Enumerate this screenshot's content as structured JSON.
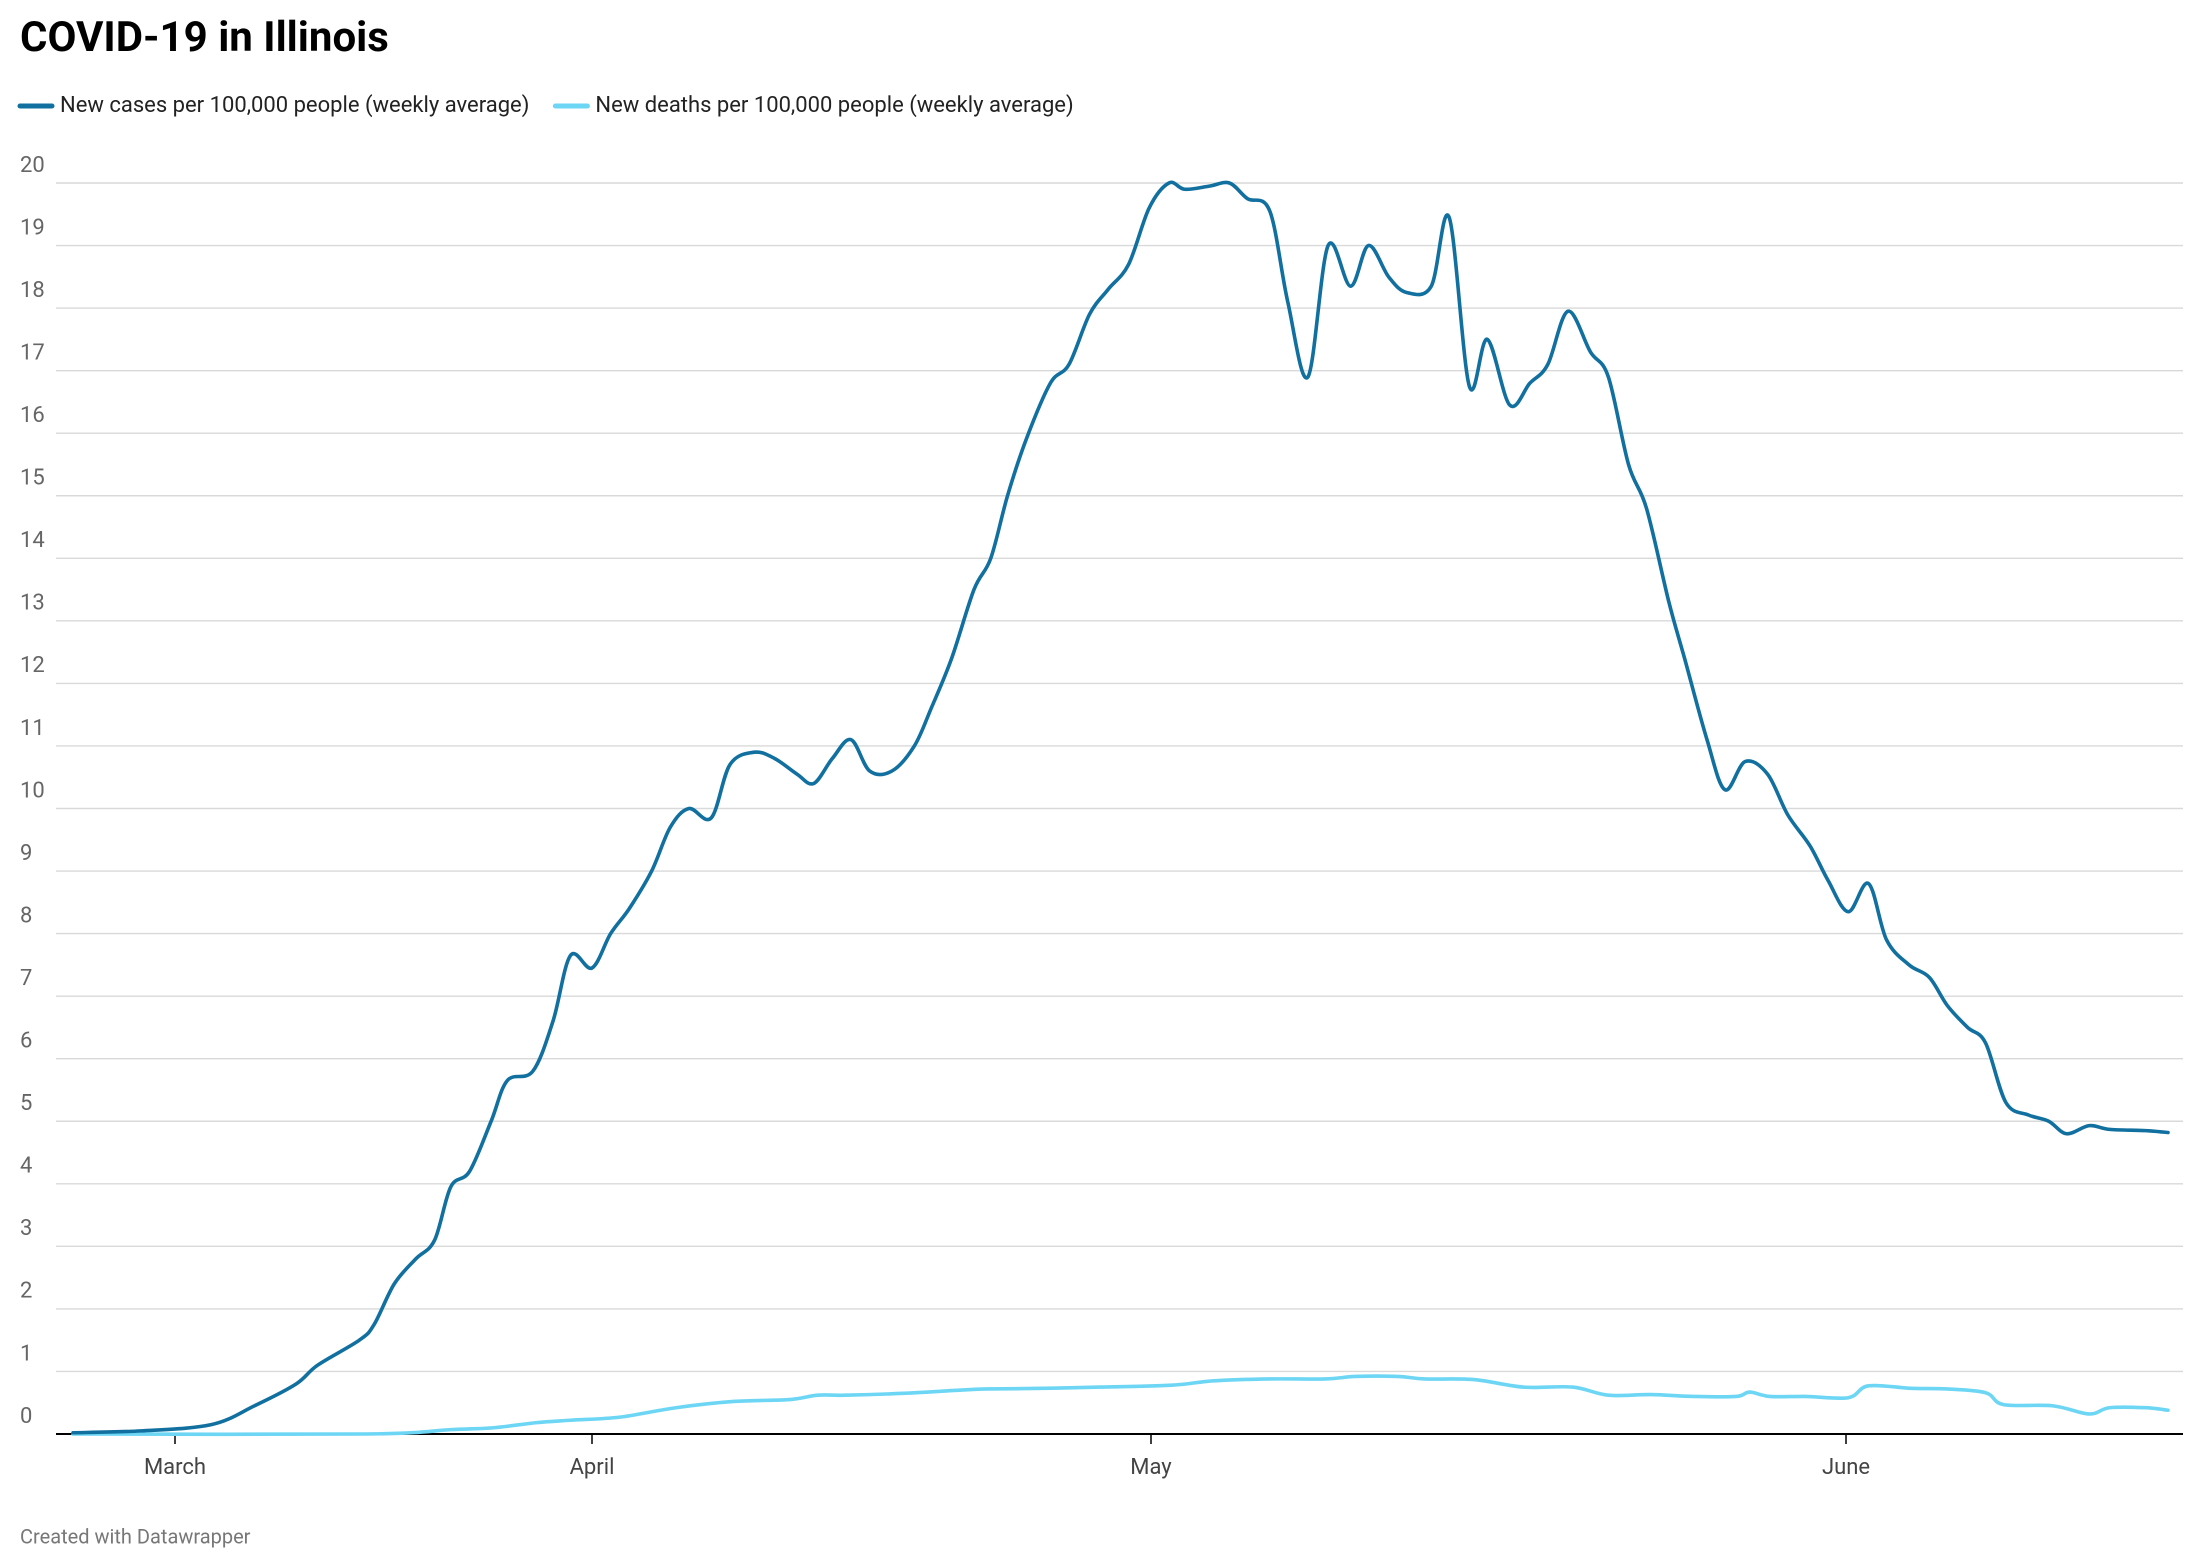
{
  "chart_data": {
    "type": "line",
    "title": "COVID-19 in Illinois",
    "footer": "Created with Datawrapper",
    "xlim": [
      -7.5,
      106.3
    ],
    "xticks": [
      {
        "value": 0,
        "label": "March"
      },
      {
        "value": 31,
        "label": "April"
      },
      {
        "value": 61,
        "label": "May"
      },
      {
        "value": 92,
        "label": "June"
      }
    ],
    "ylim": [
      0,
      20
    ],
    "yticks": [
      0,
      1,
      2,
      3,
      4,
      5,
      6,
      7,
      8,
      9,
      10,
      11,
      12,
      13,
      14,
      15,
      16,
      17,
      18,
      19,
      20
    ],
    "grid": true,
    "legend": "top",
    "series": [
      {
        "name": "New cases per 100,000 people (weekly average)",
        "color": "#11709f",
        "x": [
          -7.5,
          -2.5,
          2.7,
          5.9,
          9.0,
          10.6,
          13.7,
          14.8,
          16.3,
          17.9,
          19.3,
          20.5,
          21.9,
          23.5,
          24.7,
          26.6,
          28.1,
          29.4,
          31,
          32.0,
          33.0,
          34.2,
          35.2,
          36.2,
          37.4,
          38.4,
          39.7,
          40.8,
          42.0,
          42.9,
          43.9,
          44.9,
          45.9,
          47.1,
          48.3,
          49.2,
          50.3,
          51.5,
          52.4,
          53.3,
          54.3,
          55.6,
          56.6,
          57.7,
          58.7,
          59.8,
          60.9,
          61.8,
          62.5,
          63.6,
          64.5,
          65.3,
          66.3,
          67.1,
          68.0,
          68.9,
          69.9,
          70.7,
          71.6,
          72.4,
          73.5,
          74.3,
          75.2,
          76.0,
          77.0,
          77.9,
          78.7,
          79.6,
          80.6,
          81.4,
          82.3,
          83.1,
          84.1,
          84.8,
          85.8,
          86.6,
          87.5,
          88.5,
          89.4,
          90.4,
          91.2,
          92.1,
          93.0,
          93.8,
          94.8,
          95.7,
          96.5,
          97.4,
          98.2,
          99.1,
          100.1,
          101.0,
          101.8,
          102.8,
          103.7,
          105.3,
          106.3
        ],
        "values": [
          0.02,
          0.05,
          0.15,
          0.45,
          0.8,
          1.1,
          1.5,
          1.75,
          2.4,
          2.8,
          3.1,
          3.95,
          4.2,
          5.0,
          5.65,
          5.8,
          6.6,
          7.65,
          7.45,
          8.0,
          8.4,
          9.0,
          9.7,
          10.0,
          9.85,
          10.7,
          10.9,
          10.8,
          10.55,
          10.4,
          10.8,
          11.1,
          10.6,
          10.6,
          11.0,
          11.6,
          12.4,
          13.5,
          14.0,
          15.0,
          15.9,
          16.8,
          17.1,
          17.9,
          18.3,
          18.7,
          19.6,
          20.0,
          19.9,
          19.95,
          20.0,
          19.75,
          19.55,
          18.1,
          16.9,
          19.0,
          18.35,
          19.0,
          18.5,
          18.25,
          18.35,
          19.45,
          16.75,
          17.5,
          16.45,
          16.8,
          17.1,
          17.95,
          17.3,
          16.9,
          15.5,
          14.8,
          13.3,
          12.4,
          11.1,
          10.3,
          10.75,
          10.55,
          9.9,
          9.4,
          8.85,
          8.35,
          8.8,
          7.9,
          7.5,
          7.3,
          6.85,
          6.5,
          6.25,
          5.3,
          5.1,
          5.0,
          4.8,
          4.93,
          4.87,
          4.85,
          4.82
        ]
      },
      {
        "name": "New deaths per 100,000 people (weekly average)",
        "color": "#6dd6f4",
        "x": [
          -7.5,
          14.2,
          20.5,
          23.7,
          26.8,
          29.4,
          32.5,
          35.5,
          38.6,
          41.6,
          43.1,
          44.6,
          47.7,
          50.7,
          52.2,
          55.2,
          58.3,
          61.9,
          63.8,
          66.3,
          68.8,
          70.1,
          72.0,
          73.2,
          75.4,
          77.6,
          79.8,
          81.4,
          83.3,
          85.2,
          87.1,
          87.7,
          88.6,
          90.2,
          92.1,
          93.0,
          94.9,
          96.5,
          98.2,
          99.0,
          101.2,
          102.8,
          103.7,
          105.3,
          106.3
        ],
        "values": [
          0,
          0,
          0.07,
          0.1,
          0.18,
          0.22,
          0.27,
          0.42,
          0.52,
          0.55,
          0.62,
          0.62,
          0.65,
          0.7,
          0.72,
          0.73,
          0.75,
          0.78,
          0.85,
          0.88,
          0.88,
          0.92,
          0.92,
          0.88,
          0.87,
          0.75,
          0.75,
          0.62,
          0.63,
          0.6,
          0.6,
          0.67,
          0.6,
          0.6,
          0.58,
          0.77,
          0.73,
          0.72,
          0.66,
          0.47,
          0.45,
          0.32,
          0.42,
          0.42,
          0.38
        ]
      }
    ]
  }
}
